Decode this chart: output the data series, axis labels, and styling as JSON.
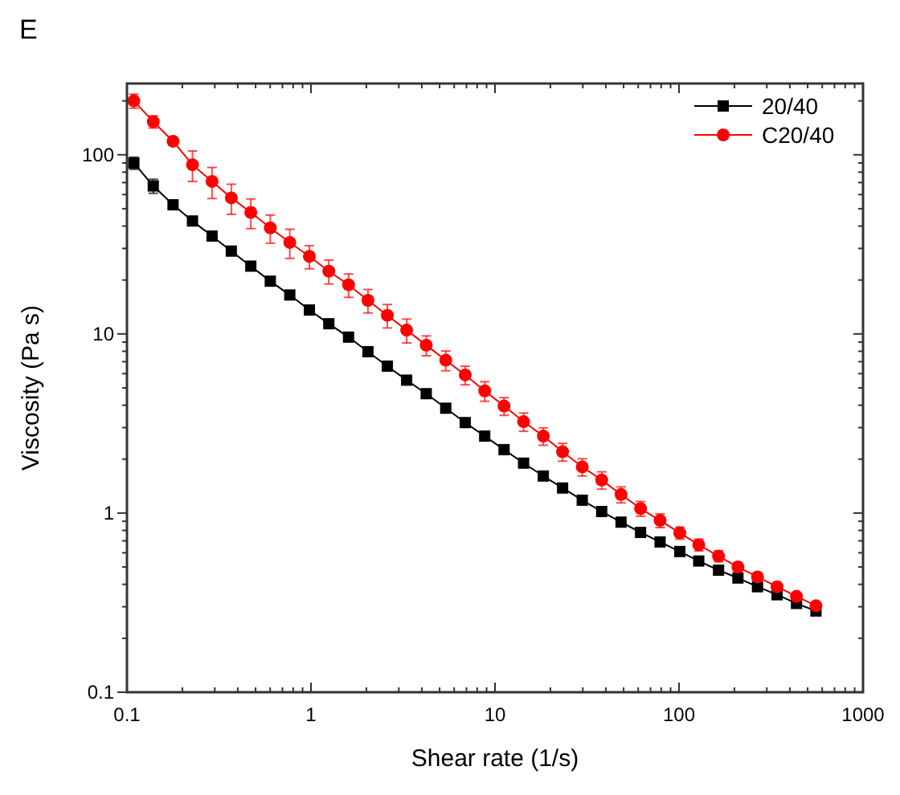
{
  "chart_data": {
    "type": "line",
    "title": "E",
    "xlabel": "Shear rate (1/s)",
    "ylabel": "Viscosity (Pa s)",
    "log": "xy",
    "grid": false,
    "legend": "top right",
    "line_style": "solid",
    "x": [
      0.109,
      0.139,
      0.178,
      0.227,
      0.29,
      0.369,
      0.471,
      0.601,
      0.767,
      0.98,
      1.25,
      1.6,
      2.04,
      2.6,
      3.31,
      4.23,
      5.4,
      6.89,
      8.79,
      11.2,
      14.3,
      18.3,
      23.3,
      29.8,
      38,
      48.4,
      61.8,
      78.9,
      101,
      128,
      164,
      209,
      267,
      341,
      435,
      555
    ],
    "xlim": [
      0.1,
      1000
    ],
    "ylim": [
      0.1,
      250
    ],
    "xticks": [
      0.1,
      {
        "value": 0.2,
        "label": null
      },
      {
        "value": 0.3,
        "label": null
      },
      {
        "value": 0.4,
        "label": null
      },
      {
        "value": 0.5,
        "label": null
      },
      {
        "value": 0.6,
        "label": null
      },
      {
        "value": 0.7,
        "label": null
      },
      {
        "value": 0.8,
        "label": null
      },
      {
        "value": 0.9,
        "label": null
      },
      1,
      {
        "value": 2,
        "label": null
      },
      {
        "value": 3,
        "label": null
      },
      {
        "value": 4,
        "label": null
      },
      {
        "value": 5,
        "label": null
      },
      {
        "value": 6,
        "label": null
      },
      {
        "value": 7,
        "label": null
      },
      {
        "value": 8,
        "label": null
      },
      {
        "value": 9,
        "label": null
      },
      10,
      {
        "value": 20,
        "label": null
      },
      {
        "value": 30,
        "label": null
      },
      {
        "value": 40,
        "label": null
      },
      {
        "value": 50,
        "label": null
      },
      {
        "value": 60,
        "label": null
      },
      {
        "value": 70,
        "label": null
      },
      {
        "value": 80,
        "label": null
      },
      {
        "value": 90,
        "label": null
      },
      100,
      {
        "value": 200,
        "label": null
      },
      {
        "value": 300,
        "label": null
      },
      {
        "value": 400,
        "label": null
      },
      {
        "value": 500,
        "label": null
      },
      {
        "value": 600,
        "label": null
      },
      {
        "value": 700,
        "label": null
      },
      {
        "value": 800,
        "label": null
      },
      {
        "value": 900,
        "label": null
      },
      1000
    ],
    "yticks": [
      0.1,
      {
        "value": 0.2,
        "label": null
      },
      {
        "value": 0.3,
        "label": null
      },
      {
        "value": 0.4,
        "label": null
      },
      {
        "value": 0.5,
        "label": null
      },
      {
        "value": 0.6,
        "label": null
      },
      {
        "value": 0.7,
        "label": null
      },
      {
        "value": 0.8,
        "label": null
      },
      {
        "value": 0.9,
        "label": null
      },
      1,
      {
        "value": 2,
        "label": null
      },
      {
        "value": 3,
        "label": null
      },
      {
        "value": 4,
        "label": null
      },
      {
        "value": 5,
        "label": null
      },
      {
        "value": 6,
        "label": null
      },
      {
        "value": 7,
        "label": null
      },
      {
        "value": 8,
        "label": null
      },
      {
        "value": 9,
        "label": null
      },
      10,
      {
        "value": 20,
        "label": null
      },
      {
        "value": 30,
        "label": null
      },
      {
        "value": 40,
        "label": null
      },
      {
        "value": 50,
        "label": null
      },
      {
        "value": 60,
        "label": null
      },
      {
        "value": 70,
        "label": null
      },
      {
        "value": 80,
        "label": null
      },
      {
        "value": 90,
        "label": null
      },
      100,
      {
        "value": 200,
        "label": null
      }
    ],
    "series": [
      {
        "name": "20/40",
        "color": "#000000",
        "marker": "square",
        "values": [
          90,
          67,
          52.6,
          42.7,
          35.2,
          29,
          23.9,
          19.7,
          16.5,
          13.6,
          11.4,
          9.6,
          7.96,
          6.61,
          5.52,
          4.64,
          3.85,
          3.2,
          2.69,
          2.26,
          1.9,
          1.61,
          1.38,
          1.18,
          1.02,
          0.89,
          0.78,
          0.69,
          0.61,
          0.54,
          0.48,
          0.434,
          0.388,
          0.35,
          0.313,
          0.284
        ],
        "errors": [
          7,
          6,
          null,
          null,
          null,
          null,
          null,
          null,
          null,
          null,
          null,
          null,
          null,
          null,
          null,
          null,
          null,
          null,
          null,
          null,
          null,
          null,
          null,
          null,
          null,
          null,
          null,
          null,
          null,
          null,
          null,
          null,
          null,
          null,
          null,
          null
        ]
      },
      {
        "name": "C20/40",
        "color": "#ff0000",
        "marker": "circle",
        "values": [
          200,
          153,
          119,
          88,
          71,
          57.5,
          47.7,
          39.1,
          32.4,
          27.1,
          22.4,
          18.8,
          15.4,
          12.7,
          10.5,
          8.65,
          7.13,
          5.9,
          4.81,
          3.96,
          3.24,
          2.69,
          2.2,
          1.81,
          1.53,
          1.27,
          1.06,
          0.91,
          0.775,
          0.665,
          0.575,
          0.5,
          0.44,
          0.388,
          0.343,
          0.304
        ],
        "errors": [
          18,
          12,
          6,
          17,
          14,
          11,
          9,
          7,
          6,
          4,
          3.4,
          2.8,
          2.3,
          1.9,
          1.6,
          1.1,
          0.9,
          0.7,
          0.6,
          0.45,
          0.38,
          0.3,
          0.25,
          0.2,
          0.17,
          0.13,
          0.1,
          0.08,
          0.06,
          0.05,
          0.04,
          0.03,
          0.025,
          0.02,
          0.015,
          0.012
        ]
      }
    ]
  }
}
